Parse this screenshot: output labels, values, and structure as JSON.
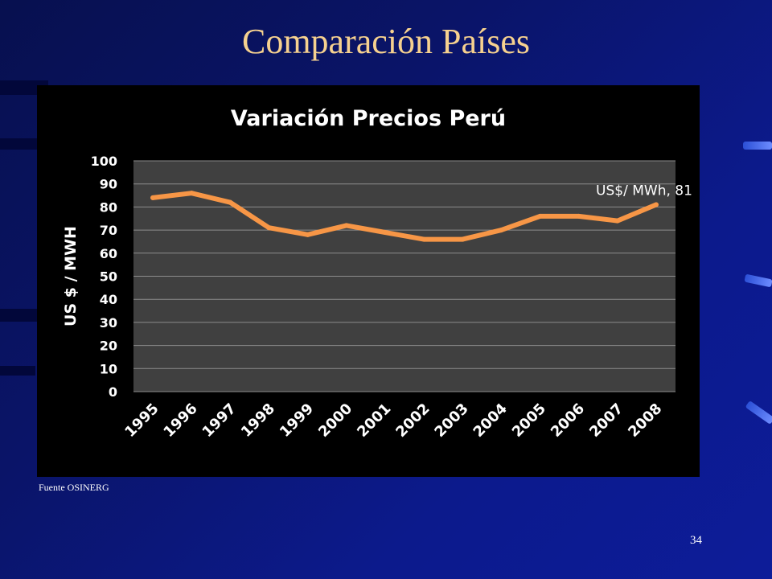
{
  "slide": {
    "title": "Comparación Países",
    "source": "Fuente OSINERG",
    "page_number": "34"
  },
  "chart_data": {
    "type": "line",
    "title": "Variación Precios Perú",
    "xlabel": "",
    "ylabel": "US $ / MWH",
    "x": [
      "1995",
      "1996",
      "1997",
      "1998",
      "1999",
      "2000",
      "2001",
      "2002",
      "2003",
      "2004",
      "2005",
      "2006",
      "2007",
      "2008"
    ],
    "series": [
      {
        "values": [
          84,
          86,
          82,
          71,
          68,
          72,
          69,
          66,
          66,
          70,
          76,
          76,
          74,
          81
        ]
      }
    ],
    "ylim": [
      0,
      100
    ],
    "yticks": [
      0,
      10,
      20,
      30,
      40,
      50,
      60,
      70,
      80,
      90,
      100
    ],
    "annotation": "US$/ MWh, 81",
    "grid": true,
    "legend": "none",
    "colors": {
      "line": "#f79646",
      "plot_background": "#404040",
      "chart_background": "#000000",
      "gridline": "#8c8c8c",
      "text": "#ffffff"
    }
  }
}
